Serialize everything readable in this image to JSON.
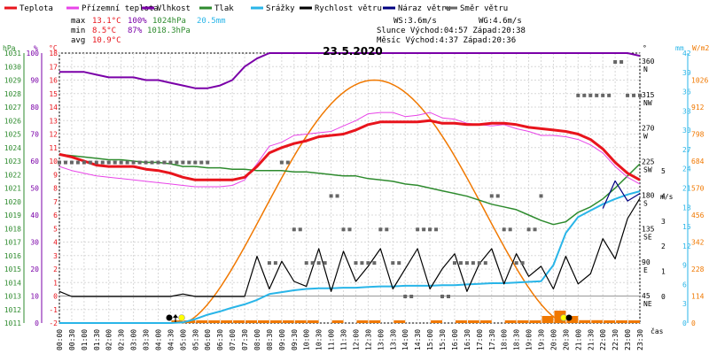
{
  "legend": [
    {
      "label": "Teplota",
      "color": "#e8141c"
    },
    {
      "label": "Přízemní teplota",
      "color": "#e844e8"
    },
    {
      "label": "Vlhkost",
      "color": "#7a00a8"
    },
    {
      "label": "Tlak",
      "color": "#2e8b2e"
    },
    {
      "label": "Srážky",
      "color": "#29b5e8"
    },
    {
      "label": "Rychlost větru",
      "color": "#000000"
    },
    {
      "label": "Náraz větru",
      "color": "#000080"
    },
    {
      "label": "Směr větru",
      "color": "#666666"
    }
  ],
  "stats": {
    "max_label": "max",
    "max_temp": "13.1°C",
    "max_hum": "100%",
    "max_press": "1024hPa",
    "precip": "20.5mm",
    "min_label": "min",
    "min_temp": "8.5°C",
    "min_hum": "87%",
    "min_press": "1018.3hPa",
    "avg_label": "avg",
    "avg_temp": "10.9°C",
    "ws": "WS:3.6m/s",
    "wg": "WG:4.6m/s",
    "sun": "Slunce Východ:04:57  Západ:20:38",
    "moon": "Měsíc  Východ:4:37  Západ:20:36"
  },
  "chart_data": {
    "type": "line",
    "title": "23.5.2020",
    "xlabel": "čas",
    "x": [
      "00:00",
      "00:30",
      "01:00",
      "01:30",
      "02:00",
      "02:30",
      "03:00",
      "03:30",
      "04:00",
      "04:30",
      "05:00",
      "05:30",
      "06:00",
      "06:30",
      "07:00",
      "07:30",
      "08:00",
      "08:30",
      "09:00",
      "09:30",
      "10:00",
      "10:30",
      "11:00",
      "11:30",
      "12:00",
      "12:30",
      "13:00",
      "13:30",
      "14:00",
      "14:30",
      "15:00",
      "15:30",
      "16:00",
      "16:30",
      "17:00",
      "17:30",
      "18:00",
      "18:30",
      "19:00",
      "19:30",
      "20:00",
      "20:30",
      "21:00",
      "21:30",
      "22:00",
      "22:30",
      "23:00",
      "23:30"
    ],
    "axes": {
      "hpa": {
        "label": "hPa",
        "ticks": [
          1011,
          1012,
          1013,
          1014,
          1015,
          1016,
          1017,
          1018,
          1019,
          1020,
          1021,
          1022,
          1023,
          1024,
          1025,
          1026,
          1027,
          1028,
          1029,
          1030,
          1031
        ]
      },
      "percent": {
        "label": "%",
        "ticks": [
          0,
          10,
          20,
          30,
          40,
          50,
          60,
          70,
          80,
          90,
          100
        ]
      },
      "celsius": {
        "label": "°C",
        "ticks": [
          -2,
          -1,
          0,
          1,
          2,
          3,
          4,
          5,
          6,
          7,
          8,
          9,
          10,
          11,
          12,
          13,
          14,
          15,
          16,
          17,
          18
        ]
      },
      "degrees": {
        "label": "°",
        "ticks": [
          "45 NE",
          "90 E",
          "135 SE",
          "180 S",
          "225 SW",
          "270 W",
          "315 NW",
          "360 N"
        ]
      },
      "ms": {
        "label": "m/s",
        "ticks": [
          0,
          1,
          2,
          3,
          4,
          5
        ]
      },
      "mm": {
        "label": "mm",
        "ticks": [
          0,
          3,
          6,
          9,
          12,
          15,
          18,
          21,
          24,
          27,
          30,
          33,
          36,
          39,
          42
        ]
      },
      "wm2": {
        "label": "W/m2",
        "ticks": [
          0,
          114,
          228,
          342,
          456,
          570,
          684,
          798,
          912,
          1026
        ]
      }
    },
    "series": [
      {
        "name": "Teplota",
        "unit": "°C",
        "values": [
          10.5,
          10.3,
          10.0,
          9.7,
          9.6,
          9.6,
          9.6,
          9.4,
          9.3,
          9.1,
          8.8,
          8.6,
          8.6,
          8.6,
          8.6,
          8.8,
          9.6,
          10.6,
          11.0,
          11.3,
          11.5,
          11.8,
          11.9,
          12.0,
          12.3,
          12.7,
          12.9,
          12.9,
          12.9,
          12.9,
          13.0,
          12.8,
          12.8,
          12.7,
          12.7,
          12.8,
          12.8,
          12.7,
          12.5,
          12.4,
          12.3,
          12.2,
          12.0,
          11.6,
          10.9,
          9.9,
          9.1,
          8.6
        ]
      },
      {
        "name": "Přízemní teplota",
        "unit": "°C",
        "values": [
          9.6,
          9.3,
          9.1,
          8.9,
          8.8,
          8.7,
          8.6,
          8.5,
          8.4,
          8.3,
          8.2,
          8.1,
          8.1,
          8.1,
          8.2,
          8.6,
          9.8,
          11.1,
          11.4,
          11.9,
          12.0,
          12.1,
          12.2,
          12.6,
          13.0,
          13.5,
          13.6,
          13.6,
          13.3,
          13.4,
          13.6,
          13.2,
          13.1,
          12.8,
          12.7,
          12.6,
          12.7,
          12.4,
          12.2,
          11.9,
          11.9,
          11.8,
          11.6,
          11.2,
          10.6,
          9.6,
          8.8,
          8.3
        ]
      },
      {
        "name": "Vlhkost",
        "unit": "%",
        "values": [
          93,
          93,
          93,
          92,
          91,
          91,
          91,
          90,
          90,
          89,
          88,
          87,
          87,
          88,
          90,
          95,
          98,
          100,
          100,
          100,
          100,
          100,
          100,
          100,
          100,
          100,
          100,
          100,
          100,
          100,
          100,
          100,
          100,
          100,
          100,
          100,
          100,
          100,
          100,
          100,
          100,
          100,
          100,
          100,
          100,
          100,
          100,
          99
        ]
      },
      {
        "name": "Tlak",
        "unit": "hPa",
        "values": [
          1023.5,
          1023.4,
          1023.3,
          1023.2,
          1023.1,
          1023.1,
          1023.0,
          1022.9,
          1022.9,
          1022.8,
          1022.6,
          1022.6,
          1022.5,
          1022.5,
          1022.4,
          1022.4,
          1022.3,
          1022.3,
          1022.3,
          1022.2,
          1022.2,
          1022.1,
          1022.0,
          1021.9,
          1021.9,
          1021.7,
          1021.6,
          1021.5,
          1021.3,
          1021.2,
          1021.0,
          1020.8,
          1020.6,
          1020.4,
          1020.1,
          1019.8,
          1019.6,
          1019.4,
          1019.0,
          1018.6,
          1018.3,
          1018.5,
          1019.2,
          1019.6,
          1020.2,
          1021.0,
          1021.9,
          1022.8
        ]
      },
      {
        "name": "Srážky",
        "unit": "mm",
        "values": [
          0,
          0,
          0,
          0,
          0,
          0,
          0,
          0,
          0,
          0,
          0.1,
          0.6,
          1.3,
          1.8,
          2.4,
          2.9,
          3.6,
          4.5,
          4.8,
          5.1,
          5.3,
          5.4,
          5.4,
          5.5,
          5.5,
          5.6,
          5.7,
          5.7,
          5.8,
          5.8,
          5.8,
          5.9,
          5.9,
          6.0,
          6.1,
          6.2,
          6.2,
          6.3,
          6.4,
          6.5,
          9.0,
          14.0,
          16.5,
          17.5,
          18.5,
          19.3,
          20.0,
          20.5
        ]
      },
      {
        "name": "Rychlost větru",
        "unit": "m/s",
        "values": [
          0.2,
          0,
          0,
          0,
          0,
          0,
          0,
          0,
          0,
          0,
          0.1,
          0,
          0,
          0,
          0,
          0,
          1.6,
          0.3,
          1.4,
          0.6,
          0.4,
          1.9,
          0.2,
          1.8,
          0.6,
          1.2,
          1.9,
          0.3,
          1.1,
          1.9,
          0.3,
          1.1,
          1.7,
          0.2,
          1.3,
          1.9,
          0.5,
          1.7,
          0.8,
          1.2,
          0.3,
          1.6,
          0.5,
          0.9,
          2.3,
          1.5,
          3.1,
          3.9
        ]
      },
      {
        "name": "Náraz větru",
        "unit": "m/s",
        "values": [
          null,
          null,
          null,
          null,
          null,
          null,
          null,
          null,
          null,
          null,
          null,
          null,
          null,
          null,
          null,
          null,
          null,
          null,
          null,
          null,
          null,
          null,
          null,
          null,
          null,
          null,
          null,
          null,
          null,
          null,
          null,
          null,
          null,
          null,
          null,
          null,
          null,
          null,
          null,
          null,
          null,
          null,
          null,
          null,
          3.5,
          4.6,
          3.8,
          4.1
        ]
      },
      {
        "name": "Směr větru",
        "unit": "°",
        "values": [
          225,
          225,
          225,
          225,
          225,
          225,
          225,
          225,
          225,
          225,
          225,
          225,
          225,
          null,
          null,
          null,
          null,
          90,
          225,
          135,
          90,
          90,
          180,
          135,
          90,
          90,
          135,
          90,
          45,
          135,
          135,
          45,
          90,
          90,
          90,
          180,
          135,
          90,
          135,
          180,
          null,
          null,
          315,
          315,
          315,
          360,
          315,
          315
        ]
      }
    ],
    "solar": {
      "name": "Sluneční svit",
      "unit": "W/m2",
      "peak": 1026,
      "shape": "bell",
      "start": "05:00",
      "end": "20:30"
    },
    "grid": true
  }
}
